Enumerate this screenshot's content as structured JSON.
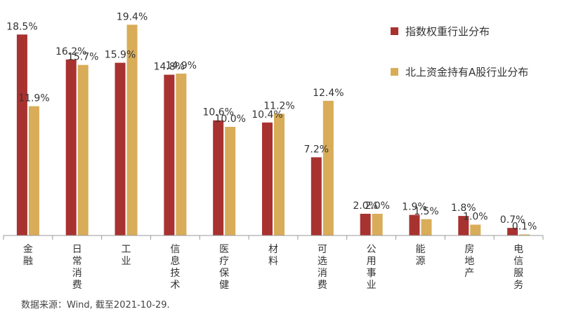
{
  "chart_data": {
    "type": "bar",
    "categories": [
      "金融",
      "日常消费",
      "工业",
      "信息技术",
      "医疗保健",
      "材料",
      "可选消费",
      "公用事业",
      "能源",
      "房地产",
      "电信服务"
    ],
    "series": [
      {
        "name": "指数权重行业分布",
        "color": "#A83230",
        "values": [
          18.5,
          16.2,
          15.9,
          14.8,
          10.6,
          10.4,
          7.2,
          2.0,
          1.9,
          1.8,
          0.7
        ],
        "labels": [
          "18.5%",
          "16.2%",
          "15.9%",
          "14.8%",
          "10.6%",
          "10.4%",
          "7.2%",
          "2.0%",
          "1.9%",
          "1.8%",
          "0.7%"
        ]
      },
      {
        "name": "北上资金持有A股行业分布",
        "color": "#D8AC58",
        "values": [
          11.9,
          15.7,
          19.4,
          14.9,
          10.0,
          11.2,
          12.4,
          2.0,
          1.5,
          1.0,
          0.1
        ],
        "labels": [
          "11.9%",
          "15.7%",
          "19.4%",
          "14.9%",
          "10.0%",
          "11.2%",
          "12.4%",
          "2.0%",
          "1.5%",
          "1.0%",
          "0.1%"
        ]
      }
    ],
    "ylim": [
      0,
      20
    ],
    "grid": false,
    "legend": "top-right"
  },
  "source_note": "数据来源：Wind, 截至2021-10-29."
}
